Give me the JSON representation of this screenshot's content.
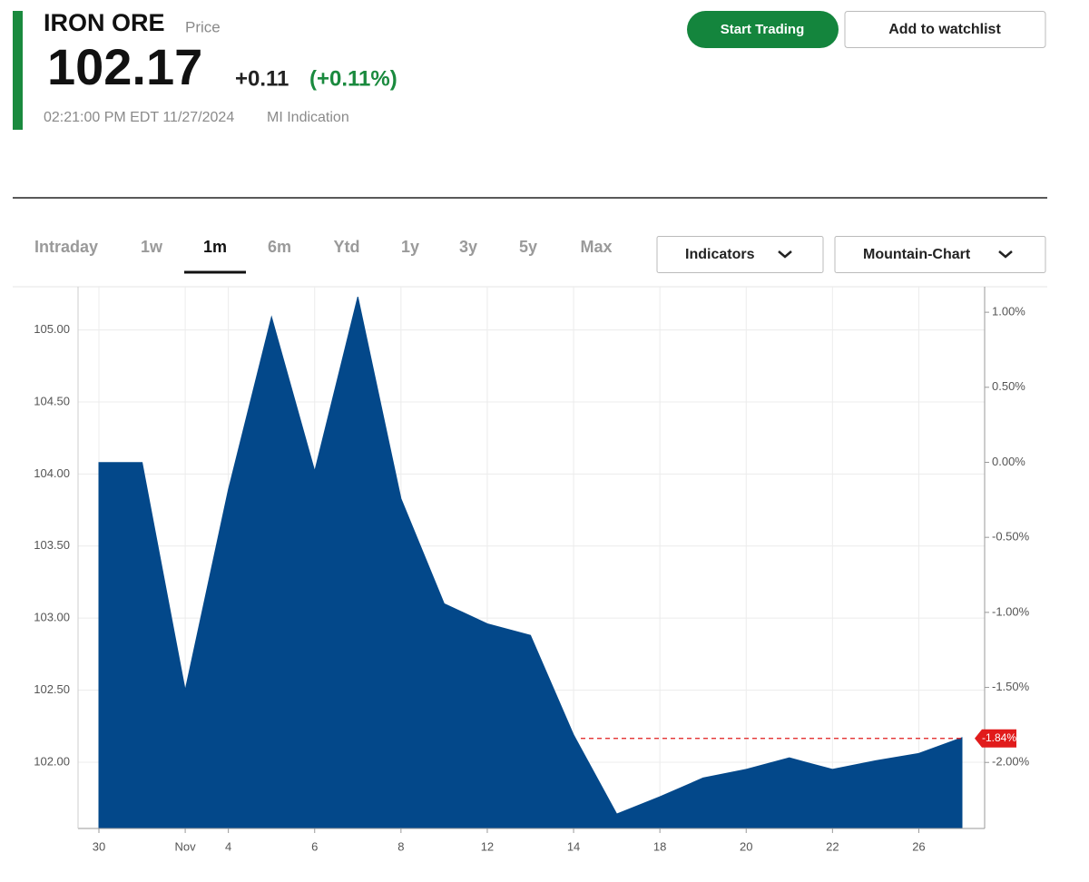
{
  "header": {
    "title": "IRON ORE",
    "subtitle": "Price",
    "price": "102.17",
    "change": "+0.11",
    "change_percent": "(+0.11%)",
    "timestamp": "02:21:00 PM EDT 11/27/2024",
    "source": "MI Indication"
  },
  "buttons": [
    "Start Trading",
    "Add to watchlist"
  ],
  "tabs": [
    "Intraday",
    "1w",
    "1m",
    "6m",
    "Ytd",
    "1y",
    "3y",
    "5y",
    "Max"
  ],
  "dropdowns": [
    "Indicators",
    "Mountain-Chart"
  ],
  "chart_data": {
    "type": "area",
    "color": "#03488a",
    "grid": true,
    "categories": [
      "30",
      null,
      "Nov",
      "4",
      null,
      "6",
      null,
      "8",
      null,
      "12",
      null,
      "14",
      null,
      "18",
      null,
      "20",
      null,
      "22",
      null,
      "26",
      null
    ],
    "values": [
      104.08,
      104.08,
      102.5,
      103.89,
      105.09,
      104.02,
      105.23,
      103.83,
      103.1,
      102.96,
      102.88,
      102.19,
      101.64,
      101.76,
      101.89,
      101.95,
      102.03,
      101.95,
      102.01,
      102.06,
      102.17
    ],
    "ylim": [
      101.54,
      105.3
    ],
    "yticks": [
      {
        "value": 102,
        "label": "102.00"
      },
      {
        "value": 102.5,
        "label": "102.50"
      },
      {
        "value": 103,
        "label": "103.00"
      },
      {
        "value": 103.5,
        "label": "103.50"
      },
      {
        "value": 104,
        "label": "104.00"
      },
      {
        "value": 104.5,
        "label": "104.50"
      },
      {
        "value": 105,
        "label": "105.00"
      }
    ],
    "y2lim": [
      -2.44,
      1.17
    ],
    "y2ticks": [
      {
        "value": -2,
        "label": "-2.00%"
      },
      {
        "value": -1.5,
        "label": "-1.50%"
      },
      {
        "value": -1,
        "label": "-1.00%"
      },
      {
        "value": -0.5,
        "label": "-0.50%"
      },
      {
        "value": 0,
        "label": "0.00%"
      },
      {
        "value": 0.5,
        "label": "0.50%"
      },
      {
        "value": 1,
        "label": "1.00%"
      }
    ],
    "last_marker": {
      "value": -1.84,
      "label": "-1.84%",
      "color": "#e11b1b"
    }
  }
}
